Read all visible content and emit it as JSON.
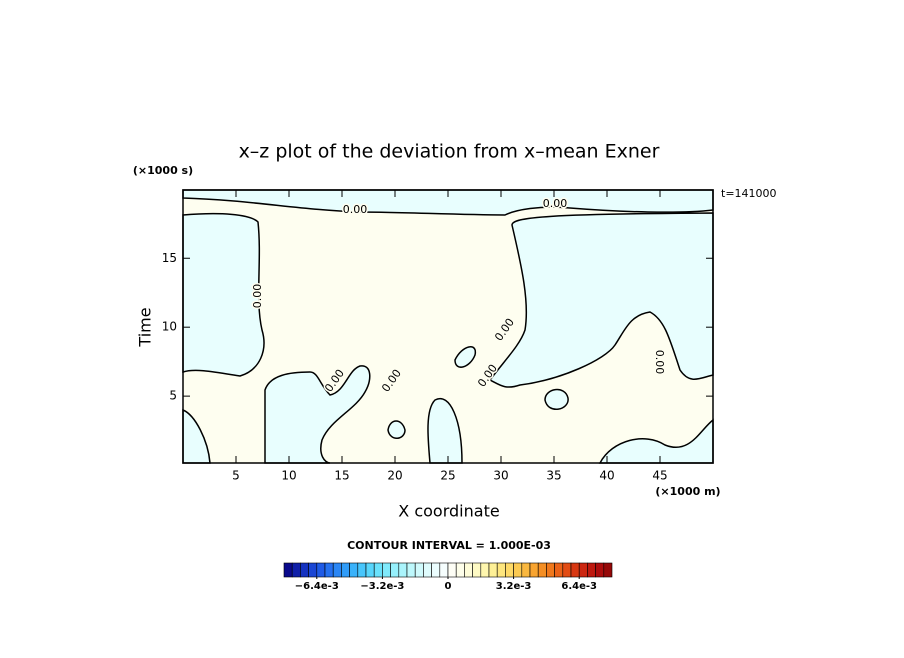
{
  "chart_data": {
    "type": "contour",
    "title": "x–z plot of the deviation from x–mean Exner",
    "x_label": "X coordinate",
    "y_label": "Time",
    "x_unit": "(×1000 m)",
    "y_unit": "(×1000 s)",
    "time_label": "t=141000",
    "xlim": [
      0,
      50
    ],
    "xticks": [
      5,
      10,
      15,
      20,
      25,
      30,
      35,
      40,
      45
    ],
    "ylim": [
      0.15,
      19.95
    ],
    "yticks": [
      5,
      10,
      15
    ],
    "contour_labels": [
      "0.00",
      "0.00",
      "0.00",
      "0.00",
      "0.00",
      "0.00",
      "0.00",
      "0.00"
    ],
    "contour_interval": "CONTOUR INTERVAL = 1.000E-03",
    "colorbar": {
      "lim": [
        -0.008,
        0.008
      ],
      "ticks": [
        {
          "value": -0.0064,
          "label": "−6.4e-3"
        },
        {
          "value": -0.0032,
          "label": "−3.2e-3"
        },
        0,
        {
          "value": 0.0032,
          "label": "3.2e-3"
        },
        {
          "value": 0.0064,
          "label": "6.4e-3"
        }
      ],
      "colors": [
        "#0a0a8c",
        "#0f1fa8",
        "#1432c0",
        "#1a46d4",
        "#1e5ae6",
        "#2470f0",
        "#2a86f5",
        "#309cf8",
        "#3ab2fa",
        "#48c6fc",
        "#58d6fc",
        "#6ae2fc",
        "#80eafc",
        "#96f0fc",
        "#aaf4fc",
        "#bef8fc",
        "#d0fafc",
        "#dffcfd",
        "#ebfdfe",
        "#f6fefe",
        "#fefef6",
        "#fefeea",
        "#fefcd8",
        "#fefac4",
        "#fef6ae",
        "#fef096",
        "#fee67e",
        "#feda68",
        "#fcca52",
        "#fab840",
        "#f8a430",
        "#f48e24",
        "#f0781c",
        "#ea6218",
        "#e24c14",
        "#d83812",
        "#cc2610",
        "#be180e",
        "#ac0c0c",
        "#960808"
      ]
    }
  }
}
